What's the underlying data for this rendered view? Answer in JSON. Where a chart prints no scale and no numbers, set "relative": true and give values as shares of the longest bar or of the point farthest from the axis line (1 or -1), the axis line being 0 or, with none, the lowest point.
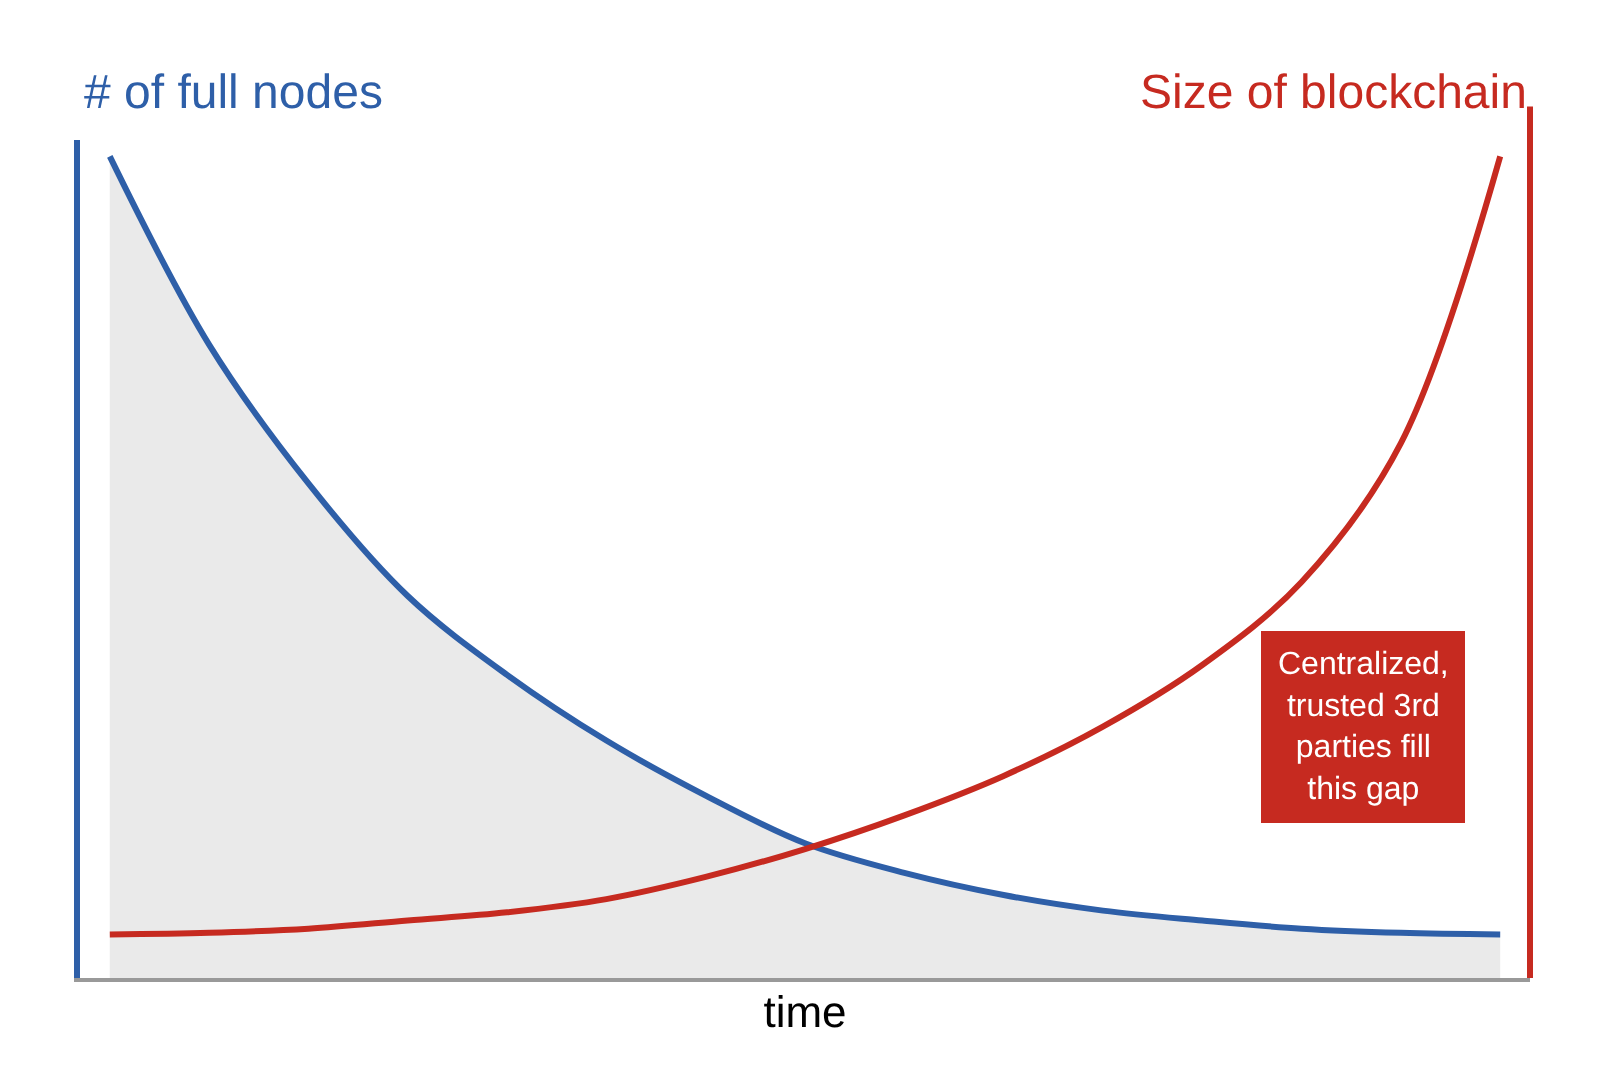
{
  "chart_data": {
    "type": "line",
    "relative": true,
    "xlabel": "time",
    "ylabel": "# of full nodes",
    "y2label": "Size of blockchain",
    "categories": [
      null,
      null,
      null,
      null,
      null,
      null,
      null,
      null,
      null,
      null,
      null,
      null,
      null,
      null,
      null
    ],
    "series": [
      {
        "type": "area",
        "color": "#2e5fa8",
        "values": [
          1,
          0.771,
          0.602,
          0.465,
          0.369,
          0.289,
          0.222,
          0.164,
          0.128,
          0.101,
          0.082,
          0.07,
          0.06,
          0.055,
          0.053
        ]
      },
      {
        "color": "#c62a20",
        "values": [
          0.053,
          0.055,
          0.06,
          0.07,
          0.08,
          0.096,
          0.123,
          0.157,
          0.198,
          0.246,
          0.306,
          0.381,
          0.482,
          0.651,
          1
        ]
      }
    ],
    "annotations": [
      "Centralized,\ntrusted 3rd\nparties fill\nthis gap"
    ]
  }
}
